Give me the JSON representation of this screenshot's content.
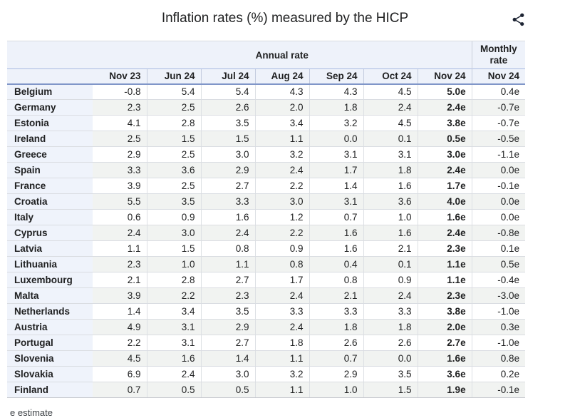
{
  "chart_data": {
    "type": "table",
    "title": "Inflation rates (%) measured by the HICP",
    "column_groups": [
      {
        "label": "Annual rate",
        "span": 7
      },
      {
        "label": "Monthly rate",
        "span": 1
      }
    ],
    "columns": [
      "Nov 23",
      "Jun 24",
      "Jul 24",
      "Aug 24",
      "Sep 24",
      "Oct 24",
      "Nov 24"
    ],
    "monthly_column": "Nov 24",
    "rows": [
      {
        "country": "Belgium",
        "annual": [
          "-0.8",
          "5.4",
          "5.4",
          "4.3",
          "4.3",
          "4.5",
          "5.0e"
        ],
        "monthly": "0.4e"
      },
      {
        "country": "Germany",
        "annual": [
          "2.3",
          "2.5",
          "2.6",
          "2.0",
          "1.8",
          "2.4",
          "2.4e"
        ],
        "monthly": "-0.7e"
      },
      {
        "country": "Estonia",
        "annual": [
          "4.1",
          "2.8",
          "3.5",
          "3.4",
          "3.2",
          "4.5",
          "3.8e"
        ],
        "monthly": "-0.7e"
      },
      {
        "country": "Ireland",
        "annual": [
          "2.5",
          "1.5",
          "1.5",
          "1.1",
          "0.0",
          "0.1",
          "0.5e"
        ],
        "monthly": "-0.5e"
      },
      {
        "country": "Greece",
        "annual": [
          "2.9",
          "2.5",
          "3.0",
          "3.2",
          "3.1",
          "3.1",
          "3.0e"
        ],
        "monthly": "-1.1e"
      },
      {
        "country": "Spain",
        "annual": [
          "3.3",
          "3.6",
          "2.9",
          "2.4",
          "1.7",
          "1.8",
          "2.4e"
        ],
        "monthly": "0.0e"
      },
      {
        "country": "France",
        "annual": [
          "3.9",
          "2.5",
          "2.7",
          "2.2",
          "1.4",
          "1.6",
          "1.7e"
        ],
        "monthly": "-0.1e"
      },
      {
        "country": "Croatia",
        "annual": [
          "5.5",
          "3.5",
          "3.3",
          "3.0",
          "3.1",
          "3.6",
          "4.0e"
        ],
        "monthly": "0.0e"
      },
      {
        "country": "Italy",
        "annual": [
          "0.6",
          "0.9",
          "1.6",
          "1.2",
          "0.7",
          "1.0",
          "1.6e"
        ],
        "monthly": "0.0e"
      },
      {
        "country": "Cyprus",
        "annual": [
          "2.4",
          "3.0",
          "2.4",
          "2.2",
          "1.6",
          "1.6",
          "2.4e"
        ],
        "monthly": "-0.8e"
      },
      {
        "country": "Latvia",
        "annual": [
          "1.1",
          "1.5",
          "0.8",
          "0.9",
          "1.6",
          "2.1",
          "2.3e"
        ],
        "monthly": "0.1e"
      },
      {
        "country": "Lithuania",
        "annual": [
          "2.3",
          "1.0",
          "1.1",
          "0.8",
          "0.4",
          "0.1",
          "1.1e"
        ],
        "monthly": "0.5e"
      },
      {
        "country": "Luxembourg",
        "annual": [
          "2.1",
          "2.8",
          "2.7",
          "1.7",
          "0.8",
          "0.9",
          "1.1e"
        ],
        "monthly": "-0.4e"
      },
      {
        "country": "Malta",
        "annual": [
          "3.9",
          "2.2",
          "2.3",
          "2.4",
          "2.1",
          "2.4",
          "2.3e"
        ],
        "monthly": "-3.0e"
      },
      {
        "country": "Netherlands",
        "annual": [
          "1.4",
          "3.4",
          "3.5",
          "3.3",
          "3.3",
          "3.3",
          "3.8e"
        ],
        "monthly": "-1.0e"
      },
      {
        "country": "Austria",
        "annual": [
          "4.9",
          "3.1",
          "2.9",
          "2.4",
          "1.8",
          "1.8",
          "2.0e"
        ],
        "monthly": "0.3e"
      },
      {
        "country": "Portugal",
        "annual": [
          "2.2",
          "3.1",
          "2.7",
          "1.8",
          "2.6",
          "2.6",
          "2.7e"
        ],
        "monthly": "-1.0e"
      },
      {
        "country": "Slovenia",
        "annual": [
          "4.5",
          "1.6",
          "1.4",
          "1.1",
          "0.7",
          "0.0",
          "1.6e"
        ],
        "monthly": "0.8e"
      },
      {
        "country": "Slovakia",
        "annual": [
          "6.9",
          "2.4",
          "3.0",
          "3.2",
          "2.9",
          "3.5",
          "3.6e"
        ],
        "monthly": "0.2e"
      },
      {
        "country": "Finland",
        "annual": [
          "0.7",
          "0.5",
          "0.5",
          "1.1",
          "1.0",
          "1.5",
          "1.9e"
        ],
        "monthly": "-0.1e"
      }
    ],
    "footnote": "e estimate",
    "estimate_suffix": "e"
  },
  "icons": {
    "share": "share-icon"
  },
  "colors": {
    "header_bg": "#eef2fa",
    "country_column_bg": "#eff3fb",
    "even_row_bg": "#f1f3f1",
    "header_border_top": "#aabce2",
    "header_border_bottom": "#8096c8",
    "text": "#202122",
    "share_icon": "#1d2433"
  }
}
